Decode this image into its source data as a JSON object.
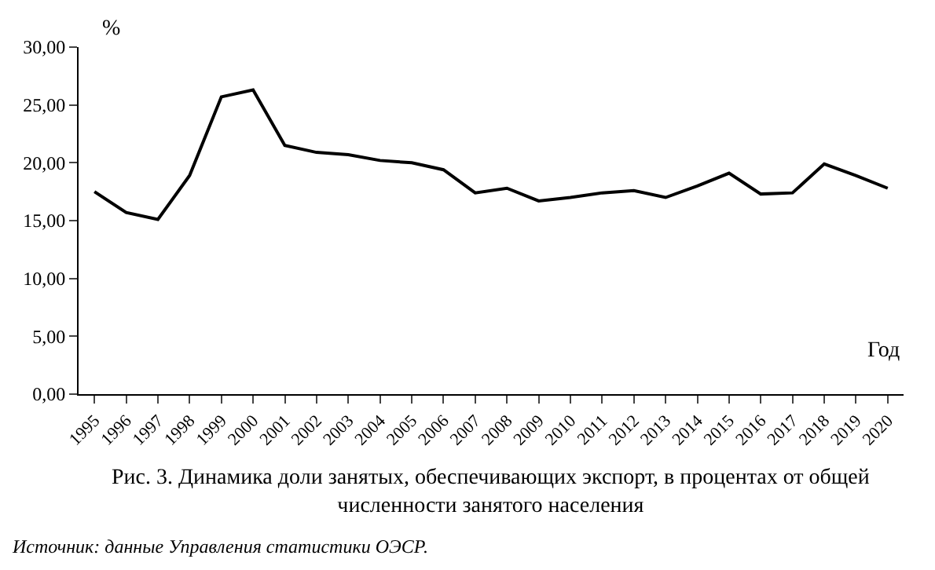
{
  "chart_data": {
    "type": "line",
    "ylabel": "%",
    "xlabel": "Год",
    "categories": [
      "1995",
      "1996",
      "1997",
      "1998",
      "1999",
      "2000",
      "2001",
      "2002",
      "2003",
      "2004",
      "2005",
      "2006",
      "2007",
      "2008",
      "2009",
      "2010",
      "2011",
      "2012",
      "2013",
      "2014",
      "2015",
      "2016",
      "2017",
      "2018",
      "2019",
      "2020"
    ],
    "series": [
      {
        "color": "#000000",
        "values": [
          17.5,
          15.7,
          15.1,
          18.9,
          25.7,
          26.3,
          21.5,
          20.9,
          20.7,
          20.2,
          20.0,
          19.4,
          17.4,
          17.8,
          16.7,
          17.0,
          17.4,
          17.6,
          17.0,
          18.0,
          19.1,
          17.3,
          17.4,
          19.9,
          18.9,
          17.8
        ]
      }
    ],
    "ylim": [
      0,
      30
    ],
    "yticks": [
      {
        "value": 0,
        "label": "0,00"
      },
      {
        "value": 5,
        "label": "5,00"
      },
      {
        "value": 10,
        "label": "10,00"
      },
      {
        "value": 15,
        "label": "15,00"
      },
      {
        "value": 20,
        "label": "20,00"
      },
      {
        "value": 25,
        "label": "25,00"
      },
      {
        "value": 30,
        "label": "30,00"
      }
    ],
    "legend": false,
    "marker": "none",
    "line_style": "solid",
    "annotations": [
      "Рис. 3. Динамика доли занятых, обеспечивающих экспорт, в процентах от общей\nчисленности занятого населения",
      "Источник: данные Управления статистики ОЭСР."
    ]
  }
}
